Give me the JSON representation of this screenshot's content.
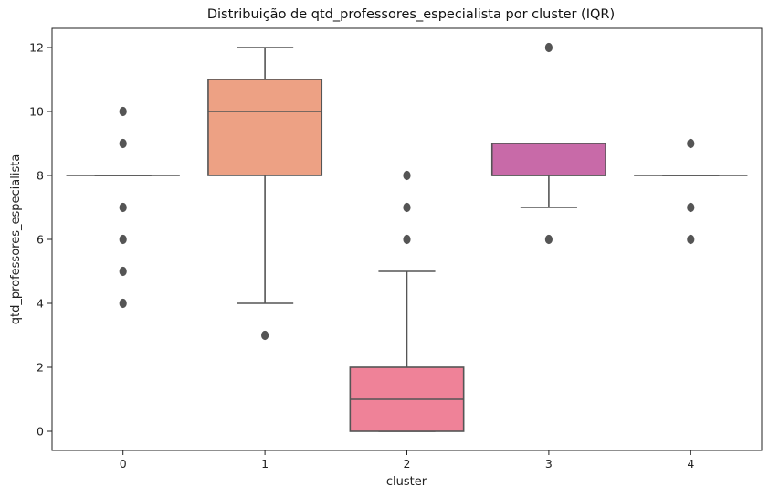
{
  "chart_data": {
    "type": "boxplot",
    "title": "Distribuição de qtd_professores_especialista por cluster (IQR)",
    "xlabel": "cluster",
    "ylabel": "qtd_professores_especialista",
    "ylim": [
      -0.6,
      12.6
    ],
    "yticks": [
      "0",
      "2",
      "4",
      "6",
      "8",
      "10",
      "12"
    ],
    "grid": false,
    "categories": [
      "0",
      "1",
      "2",
      "3",
      "4"
    ],
    "boxes": [
      {
        "category": "0",
        "q1": 8,
        "median": 8,
        "q3": 8,
        "whisker_low": 8,
        "whisker_high": 8,
        "outliers": [
          4,
          5,
          6,
          7,
          9,
          10
        ],
        "color": "#f08080"
      },
      {
        "category": "1",
        "q1": 8,
        "median": 10,
        "q3": 11,
        "whisker_low": 4,
        "whisker_high": 12,
        "outliers": [
          3
        ],
        "color": "#eda184"
      },
      {
        "category": "2",
        "q1": 0,
        "median": 1,
        "q3": 2,
        "whisker_low": 0,
        "whisker_high": 5,
        "outliers": [
          6,
          7,
          8
        ],
        "color": "#ef8298"
      },
      {
        "category": "3",
        "q1": 8,
        "median": 8,
        "q3": 9,
        "whisker_low": 7,
        "whisker_high": 9,
        "outliers": [
          6,
          12
        ],
        "color": "#c86aa8"
      },
      {
        "category": "4",
        "q1": 8,
        "median": 8,
        "q3": 8,
        "whisker_low": 8,
        "whisker_high": 8,
        "outliers": [
          6,
          7,
          9
        ],
        "color": "#8c6bb1"
      }
    ],
    "line_color": "#555555",
    "outlier_color": "#555555"
  }
}
